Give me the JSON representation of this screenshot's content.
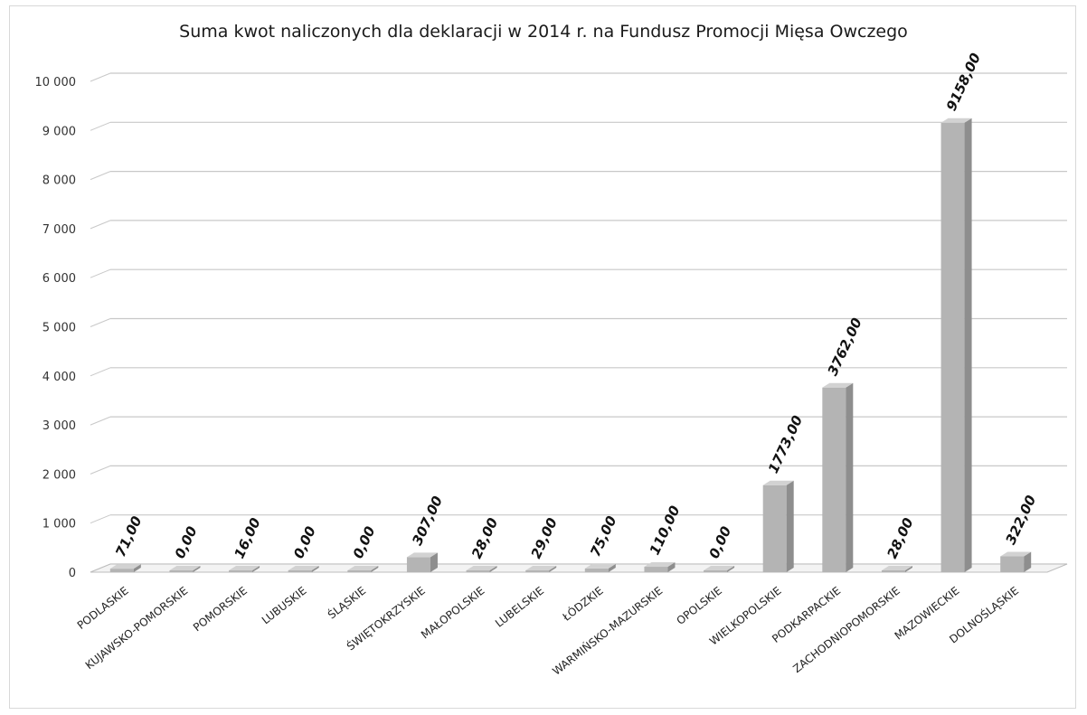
{
  "chart_data": {
    "type": "bar",
    "title": "Suma kwot naliczonych dla deklaracji  w 2014 r. na Fundusz Promocji Mięsa Owczego",
    "xlabel": "",
    "ylabel": "",
    "ylim": [
      0,
      10000
    ],
    "yticks": [
      0,
      1000,
      2000,
      3000,
      4000,
      5000,
      6000,
      7000,
      8000,
      9000,
      10000
    ],
    "ytick_labels": [
      "0",
      "1 000",
      "2 000",
      "3 000",
      "4 000",
      "5 000",
      "6 000",
      "7 000",
      "8 000",
      "9 000",
      "10 000"
    ],
    "grid": true,
    "legend": "none",
    "categories": [
      "PODLASKIE",
      "KUJAWSKO-POMORSKIE",
      "POMORSKIE",
      "LUBUSKIE",
      "ŚLĄSKIE",
      "ŚWIĘTOKRZYSKIE",
      "MAŁOPOLSKIE",
      "LUBELSKIE",
      "ŁÓDZKIE",
      "WARMIŃSKO-MAZURSKIE",
      "OPOLSKIE",
      "WIELKOPOLSKIE",
      "PODKARPACKIE",
      "ZACHODNIOPOMORSKIE",
      "MAZOWIECKIE",
      "DOLNOŚLĄSKIE"
    ],
    "values": [
      71,
      0,
      16,
      0,
      0,
      307,
      28,
      29,
      75,
      110,
      0,
      1773,
      3762,
      28,
      9158,
      322
    ],
    "data_labels": [
      "71,00",
      "0,00",
      "16,00",
      "0,00",
      "0,00",
      "307,00",
      "28,00",
      "29,00",
      "75,00",
      "110,00",
      "0,00",
      "1773,00",
      "3762,00",
      "28,00",
      "9158,00",
      "322,00"
    ],
    "colors": {
      "bar_front": "#b4b4b4",
      "bar_side": "#8e8e8e",
      "bar_top": "#d2d2d2",
      "grid": "#c8c8c8"
    }
  }
}
